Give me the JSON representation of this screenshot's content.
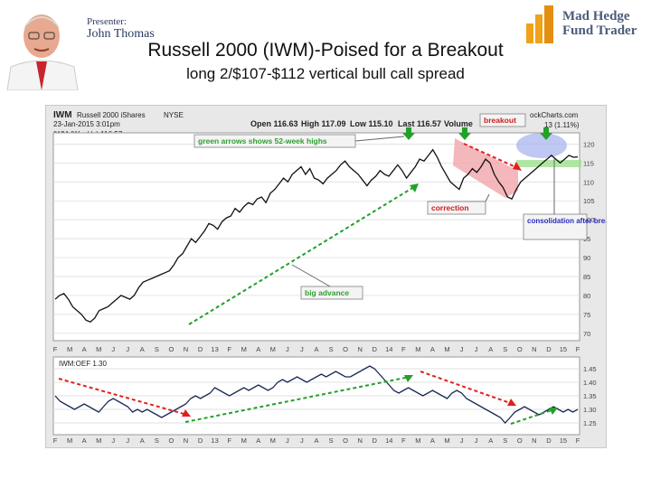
{
  "header": {
    "presenter_label": "Presenter:",
    "presenter_name": "John Thomas",
    "logo_line1": "Mad Hedge",
    "logo_line2": "Fund Trader",
    "title": "Russell 2000 (IWM)-Poised for a Breakout",
    "subtitle": "long 2/$107-$112 vertical bull call spread"
  },
  "chart_header": {
    "symbol": "IWM",
    "name": "Russell 2000 iShares",
    "exchange": "NYSE",
    "date": "23-Jan-2015 3:01pm",
    "legend": "IWM (Weekly) 116.57",
    "open": "Open 116.63",
    "high": "High 117.09",
    "low": "Low 115.10",
    "last": "Last 116.57",
    "volume": "Volume",
    "source": "ockCharts.com",
    "change": "13 (1.11%)",
    "lower_legend": "IWM:OEF 1.30"
  },
  "colors": {
    "price_line": "#111111",
    "ratio_line": "#1a2a55",
    "green_arrow": "#22a12a",
    "red_arrow": "#e02020",
    "correction_fill": "#f2aab0",
    "consolidation_fill": "#a9b6ee",
    "breakout_band": "#9fe08f",
    "panel_bg": "#ffffff",
    "grid": "#d8d8d8"
  },
  "chart_data": {
    "type": "line",
    "months": [
      "F",
      "M",
      "A",
      "M",
      "J",
      "J",
      "A",
      "S",
      "O",
      "N",
      "D",
      "13",
      "F",
      "M",
      "A",
      "M",
      "J",
      "J",
      "A",
      "S",
      "O",
      "N",
      "D",
      "14",
      "F",
      "M",
      "A",
      "M",
      "J",
      "J",
      "A",
      "S",
      "O",
      "N",
      "D",
      "15",
      "F"
    ],
    "upper": {
      "yticks": [
        70,
        75,
        80,
        85,
        90,
        95,
        100,
        105,
        110,
        115,
        120
      ],
      "ylim": [
        69,
        122
      ],
      "series": [
        {
          "values": [
            79,
            80,
            80.5,
            79,
            77,
            76,
            75,
            73.5,
            73,
            74,
            76,
            76.5,
            77,
            78,
            79,
            80,
            79.5,
            79,
            80,
            82,
            83.5,
            84,
            84.5,
            85,
            85.5,
            86,
            86.5,
            88,
            90,
            91,
            93,
            95,
            94,
            95.5,
            97,
            99,
            98.5,
            97.5,
            99.5,
            100.5,
            101,
            103,
            102,
            103.5,
            104.5,
            104,
            105.5,
            106,
            104.5,
            107,
            108,
            109.5,
            111,
            110,
            112,
            113,
            114,
            112,
            113.5,
            111,
            110.5,
            109.5,
            111,
            112,
            113,
            114.5,
            115.5,
            114,
            113,
            112,
            110.5,
            109,
            110.5,
            111.5,
            113,
            112,
            111.5,
            113,
            114.5,
            113,
            111,
            112.5,
            114,
            116,
            115.5,
            117,
            118.5,
            116.5,
            114,
            112,
            110,
            109,
            108,
            111,
            112,
            113.5,
            112.5,
            114,
            116,
            115,
            112,
            110,
            108.5,
            106,
            105.5,
            108,
            110,
            111,
            112,
            113,
            114,
            115,
            116,
            117,
            116,
            115,
            116,
            117,
            116.5,
            116.6
          ]
        }
      ],
      "annotations": [
        "green arrows shows 52-week highs",
        "breakout",
        "correction",
        "consolidation after breakout",
        "big advance"
      ]
    },
    "lower": {
      "yticks": [
        1.25,
        1.3,
        1.35,
        1.4,
        1.45
      ],
      "ylim": [
        1.22,
        1.48
      ],
      "series": [
        {
          "name": "IWM:OEF 1.30",
          "values": [
            1.35,
            1.33,
            1.32,
            1.31,
            1.3,
            1.31,
            1.32,
            1.31,
            1.3,
            1.29,
            1.31,
            1.33,
            1.34,
            1.33,
            1.32,
            1.31,
            1.29,
            1.3,
            1.29,
            1.3,
            1.29,
            1.28,
            1.27,
            1.28,
            1.29,
            1.3,
            1.31,
            1.32,
            1.34,
            1.35,
            1.34,
            1.35,
            1.36,
            1.38,
            1.37,
            1.36,
            1.35,
            1.36,
            1.37,
            1.38,
            1.37,
            1.38,
            1.39,
            1.38,
            1.37,
            1.38,
            1.4,
            1.41,
            1.4,
            1.41,
            1.42,
            1.41,
            1.4,
            1.41,
            1.42,
            1.43,
            1.42,
            1.43,
            1.44,
            1.43,
            1.42,
            1.42,
            1.43,
            1.44,
            1.45,
            1.46,
            1.45,
            1.43,
            1.41,
            1.39,
            1.37,
            1.36,
            1.37,
            1.38,
            1.37,
            1.36,
            1.35,
            1.36,
            1.37,
            1.36,
            1.35,
            1.34,
            1.36,
            1.37,
            1.36,
            1.34,
            1.33,
            1.32,
            1.31,
            1.3,
            1.29,
            1.28,
            1.27,
            1.25,
            1.27,
            1.29,
            1.3,
            1.31,
            1.3,
            1.29,
            1.28,
            1.29,
            1.3,
            1.31,
            1.3,
            1.29,
            1.3,
            1.29,
            1.3
          ]
        }
      ]
    }
  }
}
